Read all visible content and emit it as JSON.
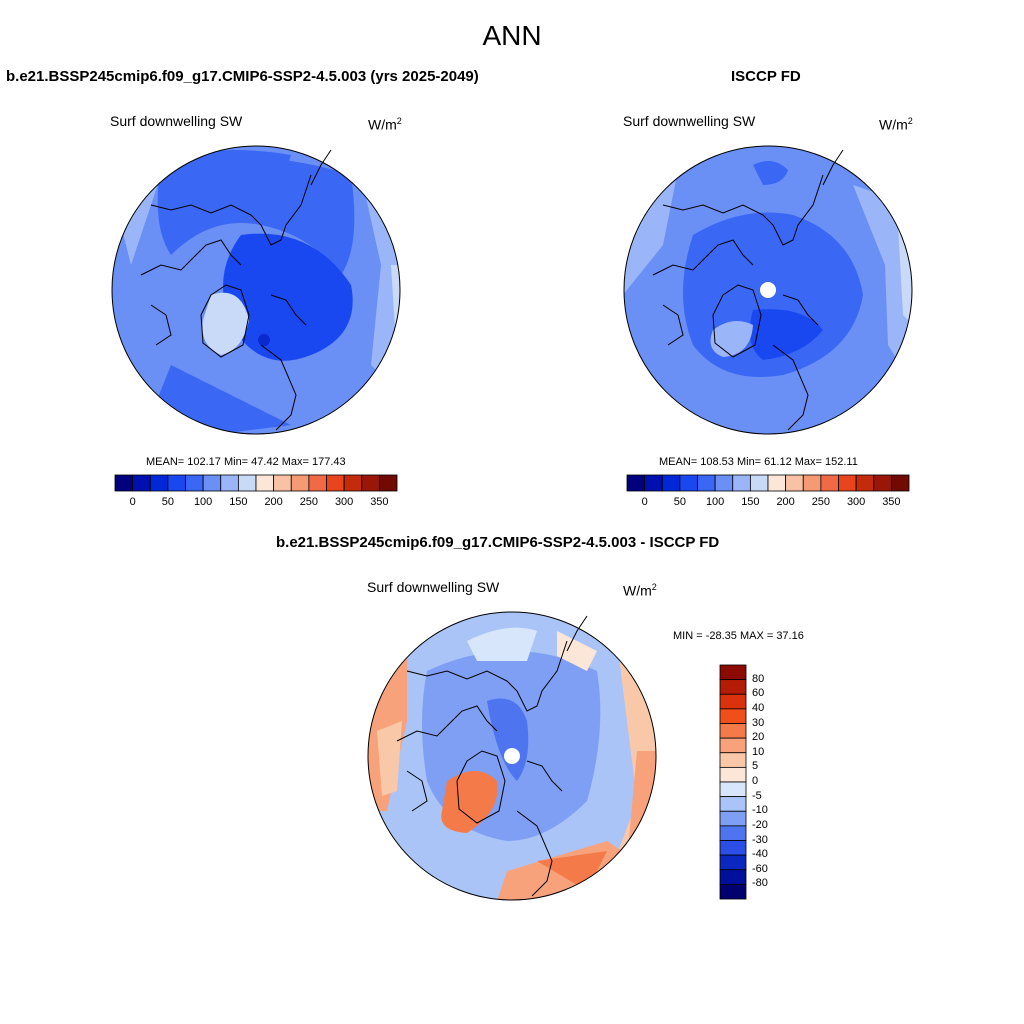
{
  "figure": {
    "title": "ANN"
  },
  "panels": [
    {
      "title": "b.e21.BSSP245cmip6.f09_g17.CMIP6-SSP2-4.5.003 (yrs 2025-2049)",
      "subtitle": "Surf downwelling SW",
      "units_base": "W/m",
      "units_exp": "2",
      "stats": "MEAN= 102.17  Min=  47.42  Max= 177.43",
      "colorbar_labels": [
        "0",
        "50",
        "100",
        "150",
        "200",
        "250",
        "300",
        "350"
      ]
    },
    {
      "title": "ISCCP FD",
      "subtitle": "Surf downwelling SW",
      "units_base": "W/m",
      "units_exp": "2",
      "stats": "MEAN= 108.53  Min=  61.12  Max= 152.11",
      "colorbar_labels": [
        "0",
        "50",
        "100",
        "150",
        "200",
        "250",
        "300",
        "350"
      ]
    },
    {
      "title": "b.e21.BSSP245cmip6.f09_g17.CMIP6-SSP2-4.5.003 - ISCCP FD",
      "subtitle": "Surf downwelling SW",
      "units_base": "W/m",
      "units_exp": "2",
      "stats": "MIN = -28.35 MAX =  37.16",
      "colorbar_labels": [
        "80",
        "60",
        "40",
        "30",
        "20",
        "10",
        "5",
        "0",
        "-5",
        "-10",
        "-20",
        "-30",
        "-40",
        "-60",
        "-80"
      ]
    }
  ],
  "colors": {
    "sequential": [
      "#00007f",
      "#0010b0",
      "#0028d8",
      "#1a48f0",
      "#3a68f5",
      "#6a8ff5",
      "#9ab5f8",
      "#c8daf8",
      "#fbe6d8",
      "#f9c2a5",
      "#f59a72",
      "#f26a45",
      "#e8441e",
      "#c42b0a",
      "#9a1606",
      "#700a02"
    ],
    "diverging": [
      "#8b0a02",
      "#b51c06",
      "#d9320c",
      "#f04f1c",
      "#f47a4a",
      "#f7a27a",
      "#f9c8a9",
      "#fbe6d8",
      "#d8e6fb",
      "#abc4f7",
      "#7e9ff4",
      "#4e74f0",
      "#2a4ee6",
      "#0a28c0",
      "#00109a",
      "#00006e"
    ]
  }
}
